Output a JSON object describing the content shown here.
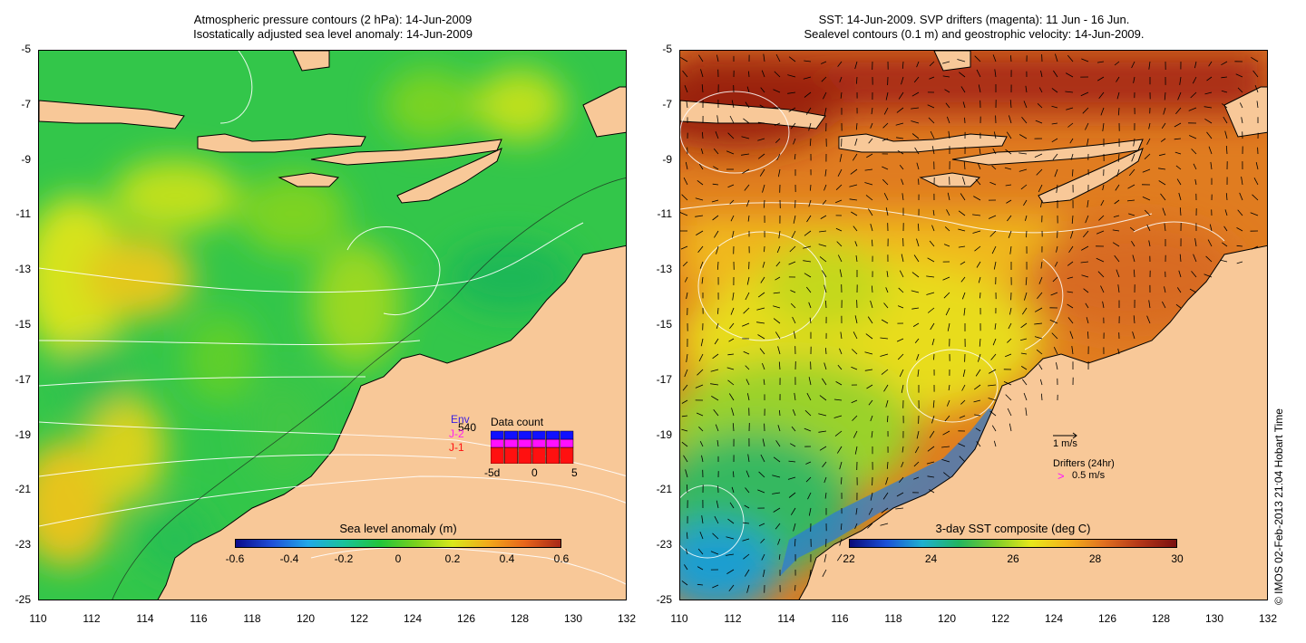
{
  "left_panel": {
    "title_line1": "Atmospheric pressure contours (2 hPa): 14-Jun-2009",
    "title_line2": "Isostatically adjusted sea level anomaly: 14-Jun-2009",
    "colorbar": {
      "title": "Sea level anomaly (m)",
      "ticks": [
        "-0.6",
        "-0.4",
        "-0.2",
        "0",
        "0.2",
        "0.4",
        "0.6"
      ],
      "colors": [
        "#0a0a8c",
        "#1f4fd8",
        "#22a8e8",
        "#19c39a",
        "#22c53a",
        "#7ad11e",
        "#d9e81a",
        "#f2a91a",
        "#e8651a",
        "#a82818"
      ]
    },
    "inset": {
      "title": "Data count",
      "legend": [
        {
          "label": "Env",
          "color": "#3a1fe0"
        },
        {
          "label": "J-2",
          "color": "#ff1ff0"
        },
        {
          "label": "J-1",
          "color": "#ff1010"
        }
      ],
      "overlap_label": "540",
      "xticks": [
        "-5d",
        "0",
        "5"
      ],
      "series_colors": [
        "#1010ff",
        "#ff10ff",
        "#ff1010"
      ],
      "bars": [
        {
          "j1": 2,
          "j2": 1,
          "env": 1
        },
        {
          "j1": 2,
          "j2": 1,
          "env": 1
        },
        {
          "j1": 2,
          "j2": 1,
          "env": 1
        },
        {
          "j1": 2,
          "j2": 1,
          "env": 1
        },
        {
          "j1": 2,
          "j2": 1,
          "env": 1
        },
        {
          "j1": 2,
          "j2": 1,
          "env": 1
        }
      ]
    }
  },
  "right_panel": {
    "title_line1": "SST: 14-Jun-2009. SVP drifters (magenta): 11 Jun - 16 Jun.",
    "title_line2": "Sealevel contours (0.1 m) and geostrophic velocity: 14-Jun-2009.",
    "colorbar": {
      "title": "3-day SST composite (deg C)",
      "ticks": [
        "22",
        "24",
        "26",
        "28",
        "30"
      ],
      "colors": [
        "#0a0a7a",
        "#1a50d8",
        "#1fb0d0",
        "#22b560",
        "#7ccc2a",
        "#e8e81a",
        "#f5b21a",
        "#e07020",
        "#b43618",
        "#7a1010"
      ]
    },
    "velocity_scale_label": "1 m/s",
    "drifters_label": "Drifters (24hr)",
    "drifter_marker": ">",
    "drifter_speed_label": "0.5 m/s"
  },
  "axes": {
    "lon_ticks": [
      "110",
      "112",
      "114",
      "116",
      "118",
      "120",
      "122",
      "124",
      "126",
      "128",
      "130",
      "132"
    ],
    "lat_ticks": [
      "-5",
      "-7",
      "-9",
      "-11",
      "-13",
      "-15",
      "-17",
      "-19",
      "-21",
      "-23",
      "-25"
    ],
    "lon_range": [
      110,
      132
    ],
    "lat_range": [
      -25,
      -5
    ]
  },
  "colors": {
    "land": "#f8c898",
    "land_outline": "#000000",
    "sea_green": "#2fc84a",
    "contour": "#ffffff"
  },
  "credit": "© IMOS 02-Feb-2013 21:04 Hobart Time"
}
